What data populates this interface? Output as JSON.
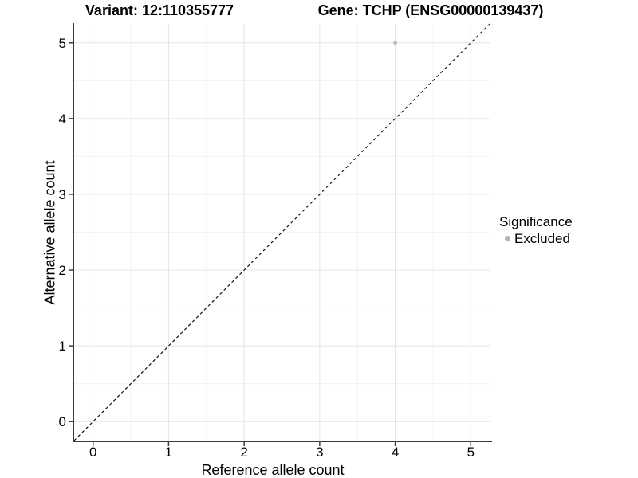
{
  "chart_data": {
    "type": "scatter",
    "title_left": "Variant: 12:110355777",
    "title_right": "Gene: TCHP (ENSG00000139437)",
    "xlabel": "Reference allele count",
    "ylabel": "Alternative allele count",
    "xlim": [
      -0.25,
      5.25
    ],
    "ylim": [
      -0.25,
      5.25
    ],
    "xticks": [
      0,
      1,
      2,
      3,
      4,
      5
    ],
    "yticks": [
      0,
      1,
      2,
      3,
      4,
      5
    ],
    "grid": {
      "major": true,
      "minor": true
    },
    "points": [
      {
        "x": 4,
        "y": 5,
        "series": "Excluded"
      }
    ],
    "reference_line": {
      "slope": 1,
      "intercept": 0,
      "style": "dashed",
      "color": "#111111"
    },
    "legend": {
      "title": "Significance",
      "position": "right",
      "entries": [
        {
          "label": "Excluded",
          "marker": "circle",
          "color": "#b4b4b4"
        }
      ]
    },
    "colors": {
      "background": "#ffffff",
      "grid_major": "#e4e4e4",
      "grid_minor": "#f3f3f3",
      "axis": "#3c3c3c",
      "point": "#bdbdbd",
      "tick_text": "#000000"
    }
  }
}
